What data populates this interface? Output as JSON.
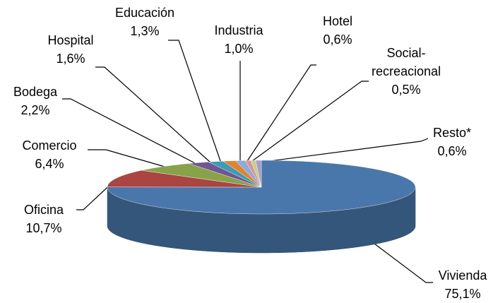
{
  "chart_data": {
    "type": "pie3d",
    "categories": [
      "Vivienda",
      "Oficina",
      "Comercio",
      "Bodega",
      "Hospital",
      "Educación",
      "Industria",
      "Hotel",
      "Social-recreacional",
      "Resto*"
    ],
    "values": [
      75.1,
      10.7,
      6.4,
      2.2,
      1.6,
      1.3,
      1.0,
      0.6,
      0.5,
      0.6
    ],
    "value_labels": [
      "75,1%",
      "10,7%",
      "6,4%",
      "2,2%",
      "1,6%",
      "1,3%",
      "1,0%",
      "0,6%",
      "0,5%",
      "0,6%"
    ],
    "colors": [
      "#4a77ab",
      "#aa4542",
      "#88a24a",
      "#6f5690",
      "#3f9ab3",
      "#e0822f",
      "#8eaad6",
      "#d99594",
      "#bfd190",
      "#aa9cc8"
    ]
  }
}
